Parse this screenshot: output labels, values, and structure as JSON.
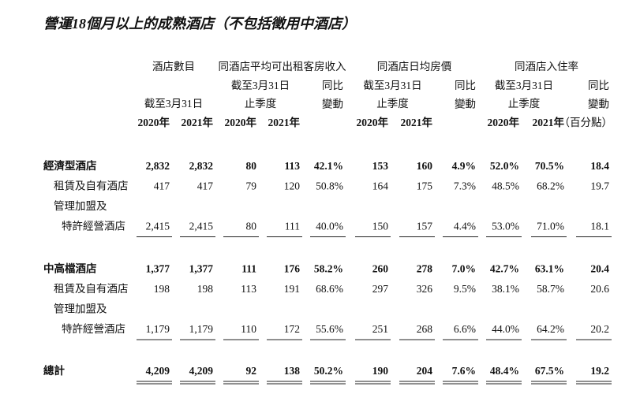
{
  "title": "營運18個月以上的成熟酒店（不包括徵用中酒店）",
  "header": {
    "groups": [
      {
        "title": "酒店數目",
        "period": [
          "截至3月31日"
        ],
        "years": [
          "2020年",
          "2021年"
        ]
      },
      {
        "title": "同酒店平均可出租客房收入",
        "period": [
          "截至3月31日",
          "止季度"
        ],
        "years": [
          "2020年",
          "2021年"
        ],
        "change": [
          "同比",
          "變動"
        ]
      },
      {
        "title": "同酒店日均房價",
        "period": [
          "截至3月31日",
          "止季度"
        ],
        "years": [
          "2020年",
          "2021年"
        ],
        "change": [
          "同比",
          "變動"
        ]
      },
      {
        "title": "同酒店入住率",
        "period": [
          "截至3月31日",
          "止季度"
        ],
        "years": [
          "2020年",
          "2021年"
        ],
        "change": [
          "同比",
          "變動",
          "（百分點）"
        ]
      }
    ]
  },
  "sections": [
    {
      "heading": {
        "label": "經濟型酒店",
        "cells": [
          "2,832",
          "2,832",
          "80",
          "113",
          "42.1%",
          "153",
          "160",
          "4.9%",
          "52.0%",
          "70.5%",
          "18.4"
        ]
      },
      "rows": [
        {
          "label": [
            "租賃及自有酒店"
          ],
          "cells": [
            "417",
            "417",
            "79",
            "120",
            "50.8%",
            "164",
            "175",
            "7.3%",
            "48.5%",
            "68.2%",
            "19.7"
          ]
        },
        {
          "label": [
            "管理加盟及",
            "特許經營酒店"
          ],
          "cells": [
            "2,415",
            "2,415",
            "80",
            "111",
            "40.0%",
            "150",
            "157",
            "4.4%",
            "53.0%",
            "71.0%",
            "18.1"
          ]
        }
      ]
    },
    {
      "heading": {
        "label": "中高檔酒店",
        "cells": [
          "1,377",
          "1,377",
          "111",
          "176",
          "58.2%",
          "260",
          "278",
          "7.0%",
          "42.7%",
          "63.1%",
          "20.4"
        ]
      },
      "rows": [
        {
          "label": [
            "租賃及自有酒店"
          ],
          "cells": [
            "198",
            "198",
            "113",
            "191",
            "68.6%",
            "297",
            "326",
            "9.5%",
            "38.1%",
            "58.7%",
            "20.6"
          ]
        },
        {
          "label": [
            "管理加盟及",
            "特許經營酒店"
          ],
          "cells": [
            "1,179",
            "1,179",
            "110",
            "172",
            "55.6%",
            "251",
            "268",
            "6.6%",
            "44.0%",
            "64.2%",
            "20.2"
          ]
        }
      ]
    }
  ],
  "total": {
    "label": "總計",
    "cells": [
      "4,209",
      "4,209",
      "92",
      "138",
      "50.2%",
      "190",
      "204",
      "7.6%",
      "48.4%",
      "67.5%",
      "19.2"
    ]
  }
}
